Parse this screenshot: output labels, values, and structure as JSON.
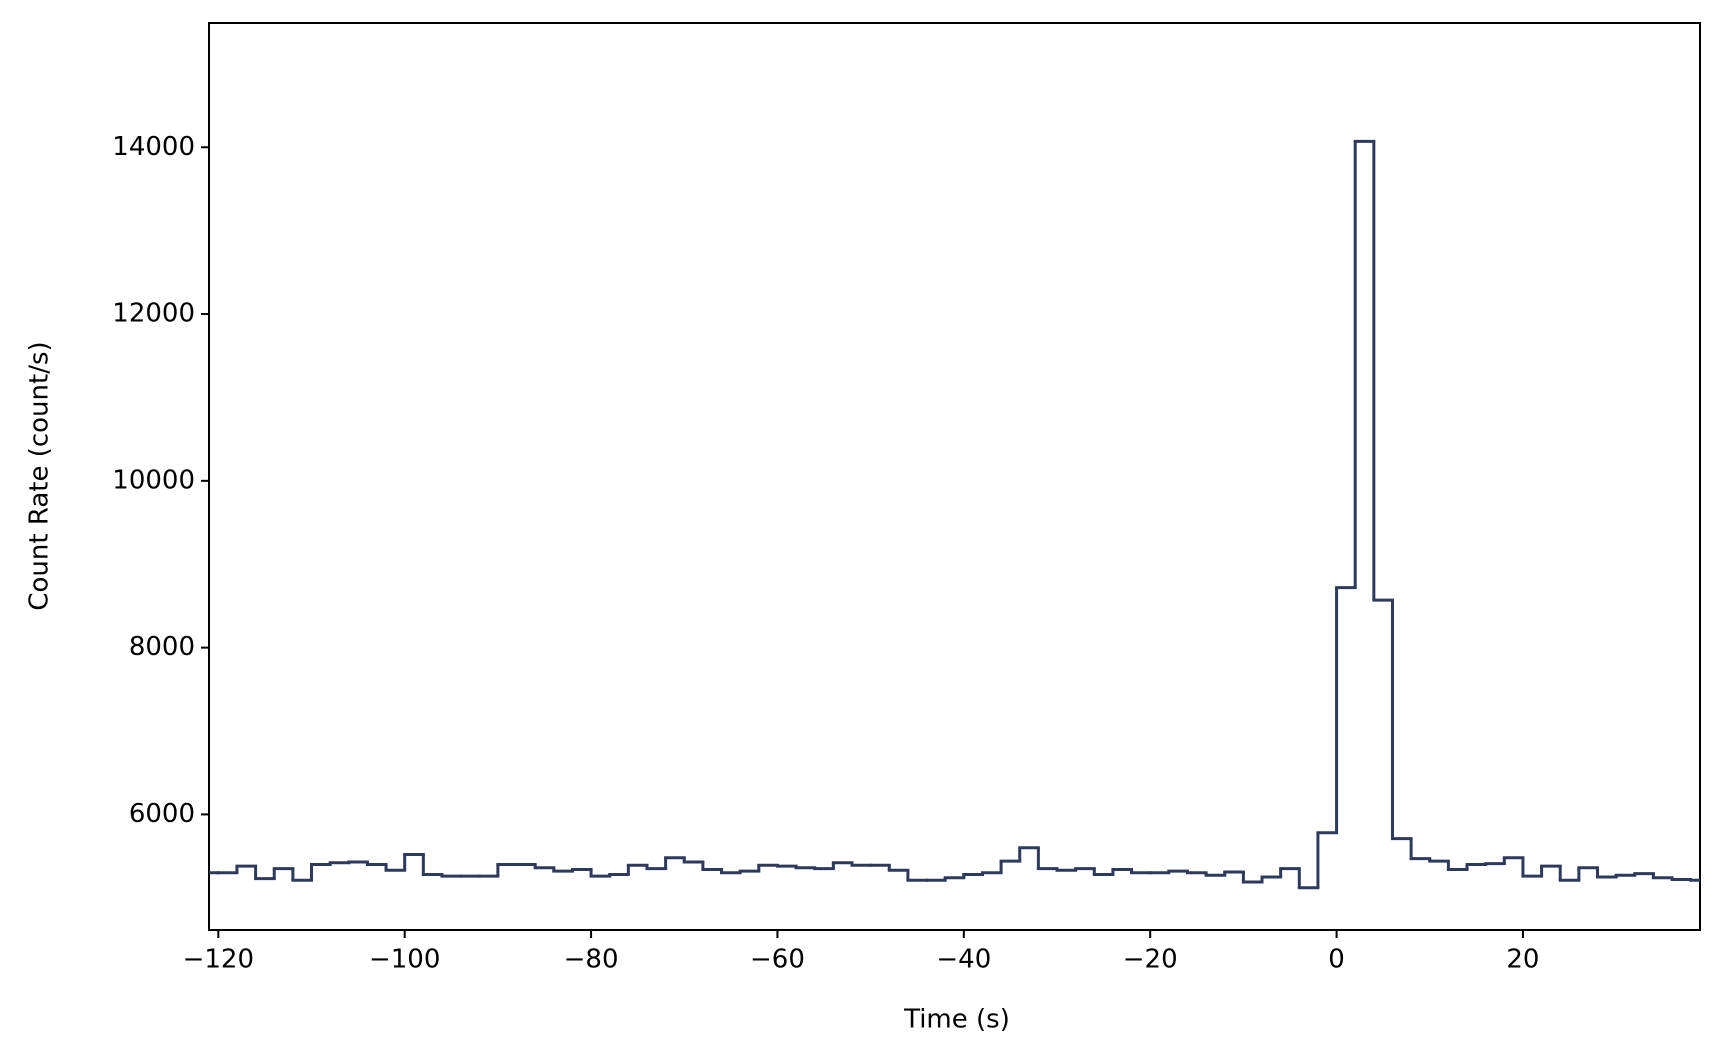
{
  "chart_data": {
    "type": "step-histogram",
    "xlabel": "Time (s)",
    "ylabel": "Count Rate (count/s)",
    "bins": [
      -122,
      -120,
      -118,
      -116,
      -114,
      -112,
      -110,
      -108,
      -106,
      -104,
      -102,
      -100,
      -98,
      -96,
      -94,
      -92,
      -90,
      -88,
      -86,
      -84,
      -82,
      -80,
      -78,
      -76,
      -74,
      -72,
      -70,
      -68,
      -66,
      -64,
      -62,
      -60,
      -58,
      -56,
      -54,
      -52,
      -50,
      -48,
      -46,
      -44,
      -42,
      -40,
      -38,
      -36,
      -34,
      -32,
      -30,
      -28,
      -26,
      -24,
      -22,
      -20,
      -18,
      -16,
      -14,
      -12,
      -10,
      -8,
      -6,
      -4,
      -2,
      0,
      2,
      4,
      6,
      8,
      10,
      12,
      14,
      16,
      18,
      20,
      22,
      24,
      26,
      28,
      30,
      32,
      34,
      36,
      38,
      40
    ],
    "values": [
      5300,
      5300,
      5380,
      5230,
      5350,
      5210,
      5400,
      5420,
      5430,
      5400,
      5330,
      5520,
      5280,
      5260,
      5260,
      5260,
      5400,
      5400,
      5360,
      5320,
      5340,
      5260,
      5280,
      5390,
      5350,
      5480,
      5430,
      5340,
      5300,
      5320,
      5390,
      5380,
      5360,
      5350,
      5420,
      5390,
      5390,
      5330,
      5210,
      5210,
      5240,
      5280,
      5300,
      5440,
      5600,
      5350,
      5330,
      5350,
      5280,
      5340,
      5300,
      5300,
      5320,
      5300,
      5270,
      5310,
      5190,
      5250,
      5350,
      5120,
      5780,
      8720,
      14070,
      8570,
      5710,
      5470,
      5440,
      5340,
      5400,
      5410,
      5480,
      5260,
      5380,
      5210,
      5360,
      5250,
      5270,
      5290,
      5240,
      5220,
      5210
    ],
    "color": "#2e3a5c",
    "xlim": [
      -121,
      39
    ],
    "ylim": [
      4614,
      15490
    ],
    "xticks": [
      {
        "value": -120,
        "label": "−120"
      },
      {
        "value": -100,
        "label": "−100"
      },
      {
        "value": -80,
        "label": "−80"
      },
      {
        "value": -60,
        "label": "−60"
      },
      {
        "value": -40,
        "label": "−40"
      },
      {
        "value": -20,
        "label": "−20"
      },
      0,
      20
    ],
    "yticks": [
      6000,
      8000,
      10000,
      12000,
      14000
    ]
  }
}
